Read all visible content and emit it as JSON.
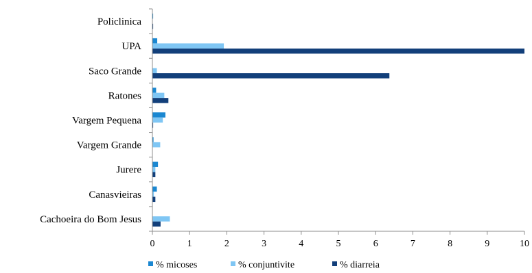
{
  "chart_data": {
    "type": "bar",
    "orientation": "horizontal",
    "categories": [
      "Policlinica",
      "UPA",
      "Saco Grande",
      "Ratones",
      "Vargem Pequena",
      "Vargem Grande",
      "Jurere",
      "Canasvieiras",
      "Cachoeira do Bom Jesus"
    ],
    "series": [
      {
        "name": "% micoses",
        "color": "#1a87d1",
        "values": [
          0.02,
          0.13,
          0.0,
          0.1,
          0.35,
          0.03,
          0.15,
          0.12,
          0.0
        ]
      },
      {
        "name": "% conjuntivite",
        "color": "#7fc6f4",
        "values": [
          0.0,
          1.92,
          0.12,
          0.32,
          0.28,
          0.21,
          0.08,
          0.04,
          0.47
        ]
      },
      {
        "name": "% diarreia",
        "color": "#123f7a",
        "values": [
          0.02,
          10.0,
          6.37,
          0.43,
          0.02,
          0.0,
          0.08,
          0.08,
          0.22
        ]
      }
    ],
    "xlim": [
      0,
      10
    ],
    "xticks": [
      "0",
      "1",
      "2",
      "3",
      "4",
      "5",
      "6",
      "7",
      "8",
      "9",
      "10"
    ],
    "grid": false,
    "legend_position": "bottom"
  }
}
